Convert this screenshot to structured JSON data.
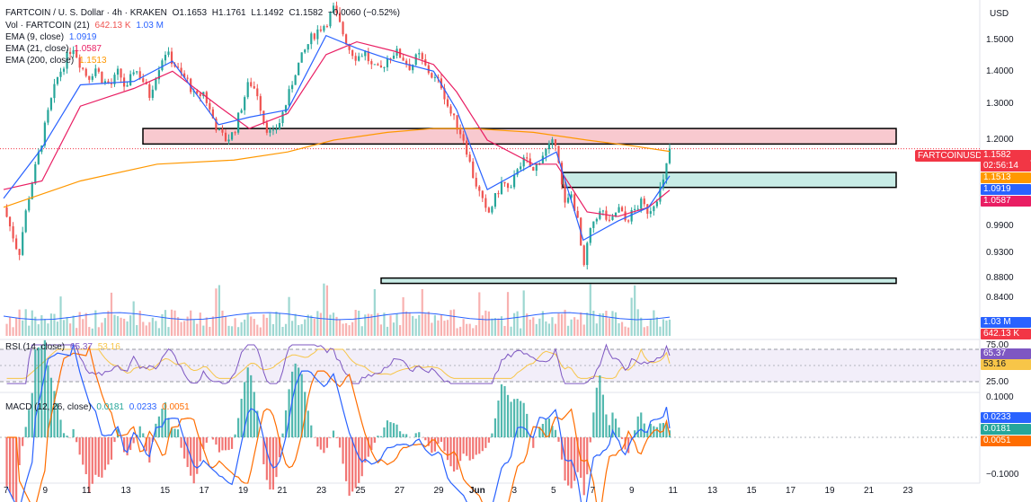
{
  "header": {
    "symbol_line": "FARTCOIN / U. S. Dollar · 4h · KRAKEN",
    "open": "O1.1653",
    "high": "H1.1761",
    "low": "L1.1492",
    "close": "C1.1582",
    "change": "−0.0060 (−0.52%)",
    "vol_label": "Vol · FARTCOIN (21)",
    "vol_value1": "642.13 K",
    "vol_value2": "1.03 M",
    "ema9_label": "EMA (9, close)",
    "ema9_value": "1.0919",
    "ema21_label": "EMA (21, close)",
    "ema21_value": "1.0587",
    "ema200_label": "EMA (200, close)",
    "ema200_value": "1.1513",
    "rsi_label": "RSI (14, close)",
    "rsi_value": "65.37",
    "rsi_ma": "53.16",
    "macd_label": "MACD (12, 26, close)",
    "macd_hist": "0.0181",
    "macd_line": "0.0233",
    "macd_signal": "0.0051"
  },
  "price_axis": {
    "currency": "USD",
    "ticks": [
      "1.5000",
      "1.4000",
      "1.3000",
      "1.2000",
      "0.9900",
      "0.9300",
      "0.8800",
      "0.8400"
    ]
  },
  "price_tags": {
    "symbol": "FARTCOINUSD",
    "last": "1.1582",
    "countdown": "02:56:14",
    "ema200": "1.1513",
    "ema9": "1.0919",
    "ema21": "1.0587",
    "vol1": "1.03 M",
    "vol2": "642.13 K"
  },
  "rsi_axis": {
    "ticks": [
      "75.00",
      "25.00"
    ],
    "value": "65.37",
    "ma": "53.16"
  },
  "macd_axis": {
    "ticks": [
      "0.1000",
      "−0.1000"
    ],
    "line": "0.0233",
    "hist": "0.0181",
    "signal": "0.0051"
  },
  "time_axis": [
    "7",
    "9",
    "11",
    "13",
    "15",
    "17",
    "19",
    "21",
    "23",
    "25",
    "27",
    "29",
    "Jun",
    "3",
    "5",
    "7",
    "9",
    "11",
    "13",
    "15",
    "17",
    "19",
    "21",
    "23"
  ],
  "colors": {
    "up": "#26a69a",
    "down": "#ef5350",
    "ema9": "#2962ff",
    "ema21": "#e91e63",
    "ema200": "#ff9800",
    "zone_red": "#f8c9cf",
    "zone_green": "#c8ece6",
    "rsi": "#7e57c2"
  },
  "chart_data": {
    "type": "candlestick",
    "timeframe": "4h",
    "y_scale": "log",
    "ylim": [
      0.82,
      1.58
    ],
    "zones": [
      {
        "kind": "resistance",
        "low": 1.17,
        "high": 1.21
      },
      {
        "kind": "support",
        "low": 1.065,
        "high": 1.1
      },
      {
        "kind": "support",
        "low": 0.865,
        "high": 0.875
      }
    ],
    "close_path": [
      [
        5.6,
        1.02
      ],
      [
        6.0,
        0.97
      ],
      [
        6.4,
        0.92
      ],
      [
        6.8,
        1.02
      ],
      [
        7.2,
        1.1
      ],
      [
        7.6,
        1.18
      ],
      [
        8.0,
        1.27
      ],
      [
        8.4,
        1.35
      ],
      [
        8.8,
        1.4
      ],
      [
        9.2,
        1.45
      ],
      [
        9.6,
        1.39
      ],
      [
        10.0,
        1.35
      ],
      [
        10.4,
        1.38
      ],
      [
        10.8,
        1.34
      ],
      [
        11.2,
        1.33
      ],
      [
        11.6,
        1.37
      ],
      [
        12.0,
        1.31
      ],
      [
        12.4,
        1.38
      ],
      [
        12.8,
        1.35
      ],
      [
        13.2,
        1.3
      ],
      [
        13.6,
        1.37
      ],
      [
        14.0,
        1.43
      ],
      [
        14.4,
        1.4
      ],
      [
        14.8,
        1.36
      ],
      [
        15.2,
        1.34
      ],
      [
        15.6,
        1.29
      ],
      [
        16.0,
        1.31
      ],
      [
        16.4,
        1.25
      ],
      [
        16.8,
        1.2
      ],
      [
        17.2,
        1.18
      ],
      [
        17.6,
        1.2
      ],
      [
        18.0,
        1.27
      ],
      [
        18.4,
        1.34
      ],
      [
        18.8,
        1.31
      ],
      [
        19.2,
        1.22
      ],
      [
        19.6,
        1.19
      ],
      [
        20.0,
        1.23
      ],
      [
        20.4,
        1.29
      ],
      [
        20.8,
        1.37
      ],
      [
        21.2,
        1.42
      ],
      [
        21.6,
        1.47
      ],
      [
        22.0,
        1.5
      ],
      [
        22.4,
        1.52
      ],
      [
        22.8,
        1.57
      ],
      [
        23.2,
        1.5
      ],
      [
        23.6,
        1.44
      ],
      [
        24.0,
        1.41
      ],
      [
        24.4,
        1.43
      ],
      [
        24.8,
        1.38
      ],
      [
        25.2,
        1.37
      ],
      [
        25.6,
        1.41
      ],
      [
        26.0,
        1.43
      ],
      [
        26.4,
        1.41
      ],
      [
        26.8,
        1.38
      ],
      [
        27.2,
        1.42
      ],
      [
        27.6,
        1.38
      ],
      [
        28.0,
        1.35
      ],
      [
        28.4,
        1.33
      ],
      [
        28.8,
        1.26
      ],
      [
        29.2,
        1.22
      ],
      [
        29.6,
        1.18
      ],
      [
        30.0,
        1.1
      ],
      [
        30.4,
        1.05
      ],
      [
        30.8,
        1.0
      ],
      [
        31.2,
        1.04
      ],
      [
        31.6,
        1.08
      ],
      [
        32.0,
        1.05
      ],
      [
        32.4,
        1.12
      ],
      [
        32.8,
        1.13
      ],
      [
        33.2,
        1.1
      ],
      [
        33.6,
        1.14
      ],
      [
        34.0,
        1.16
      ],
      [
        34.4,
        1.18
      ],
      [
        34.8,
        1.02
      ],
      [
        35.2,
        1.05
      ],
      [
        35.6,
        0.97
      ],
      [
        35.8,
        0.88
      ],
      [
        36.0,
        0.94
      ],
      [
        36.4,
        1.0
      ],
      [
        36.8,
        1.01
      ],
      [
        37.2,
        0.98
      ],
      [
        37.6,
        1.02
      ],
      [
        38.0,
        0.99
      ],
      [
        38.4,
        1.01
      ],
      [
        38.8,
        1.03
      ],
      [
        39.2,
        1.01
      ],
      [
        39.6,
        1.04
      ],
      [
        40.0,
        1.08
      ],
      [
        40.3,
        1.1582
      ]
    ],
    "ema200_path": [
      [
        5.6,
        1.02
      ],
      [
        9.6,
        1.08
      ],
      [
        13.6,
        1.12
      ],
      [
        17.6,
        1.13
      ],
      [
        20.4,
        1.15
      ],
      [
        22.8,
        1.18
      ],
      [
        25.6,
        1.2
      ],
      [
        28.0,
        1.21
      ],
      [
        30.0,
        1.21
      ],
      [
        33.2,
        1.2
      ],
      [
        36.0,
        1.18
      ],
      [
        38.4,
        1.165
      ],
      [
        40.3,
        1.1513
      ]
    ],
    "ema21_path": [
      [
        5.6,
        1.06
      ],
      [
        7.6,
        1.08
      ],
      [
        9.6,
        1.27
      ],
      [
        12.4,
        1.32
      ],
      [
        14.4,
        1.37
      ],
      [
        16.8,
        1.27
      ],
      [
        18.4,
        1.21
      ],
      [
        20.4,
        1.25
      ],
      [
        22.4,
        1.42
      ],
      [
        24.0,
        1.46
      ],
      [
        26.0,
        1.43
      ],
      [
        28.0,
        1.39
      ],
      [
        29.2,
        1.31
      ],
      [
        30.8,
        1.18
      ],
      [
        33.2,
        1.12
      ],
      [
        34.4,
        1.12
      ],
      [
        36.0,
        1.01
      ],
      [
        37.6,
        1.0
      ],
      [
        39.2,
        1.02
      ],
      [
        40.3,
        1.0587
      ]
    ],
    "ema9_path": [
      [
        5.6,
        1.04
      ],
      [
        7.6,
        1.16
      ],
      [
        9.6,
        1.33
      ],
      [
        12.4,
        1.34
      ],
      [
        14.4,
        1.4
      ],
      [
        16.8,
        1.22
      ],
      [
        18.4,
        1.24
      ],
      [
        20.4,
        1.26
      ],
      [
        22.4,
        1.48
      ],
      [
        24.0,
        1.44
      ],
      [
        26.0,
        1.4
      ],
      [
        28.0,
        1.37
      ],
      [
        29.2,
        1.26
      ],
      [
        30.8,
        1.06
      ],
      [
        33.2,
        1.12
      ],
      [
        34.4,
        1.15
      ],
      [
        35.8,
        0.95
      ],
      [
        37.6,
        0.99
      ],
      [
        39.2,
        1.02
      ],
      [
        40.3,
        1.0919
      ]
    ],
    "rsi": {
      "ylim": [
        0,
        100
      ],
      "levels": [
        75,
        25
      ],
      "last": 65.37,
      "ma_last": 53.16
    },
    "macd": {
      "last_macd": 0.0233,
      "last_signal": 0.0051,
      "last_hist": 0.0181
    },
    "volume": {
      "last": "642.13 K",
      "ma": "1.03 M"
    }
  }
}
